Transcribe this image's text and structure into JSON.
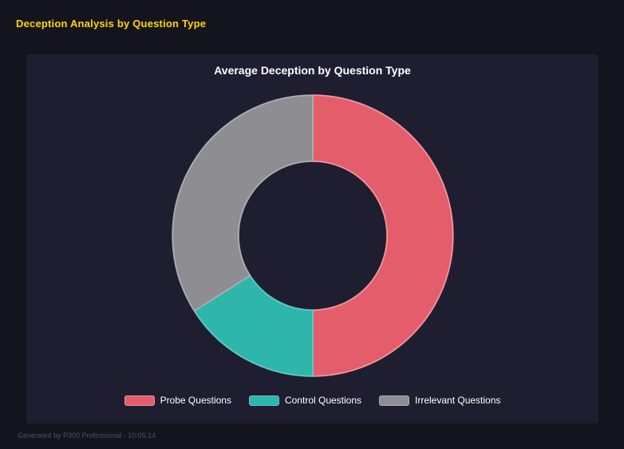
{
  "page": {
    "title": "Deception Analysis by Question Type",
    "title_color": "#ffd700",
    "footer": "Generated by P300 Professional - 10:05:14",
    "background": "#14141f",
    "panel_background": "#1e1e30"
  },
  "chart_data": {
    "type": "pie",
    "donut": true,
    "title": "Average Deception by Question Type",
    "categories": [
      "Probe Questions",
      "Control Questions",
      "Irrelevant Questions"
    ],
    "values": [
      50,
      16,
      34
    ],
    "values_unit": "percent",
    "colors": [
      "#e35d6b",
      "#2eb5ac",
      "#8e8e92"
    ],
    "border_colors": [
      "#f0939b",
      "#5ecac2",
      "#ababb2"
    ],
    "inner_radius_ratio": 0.53,
    "start_angle_deg": 0,
    "direction": "clockwise",
    "legend_position": "bottom"
  }
}
